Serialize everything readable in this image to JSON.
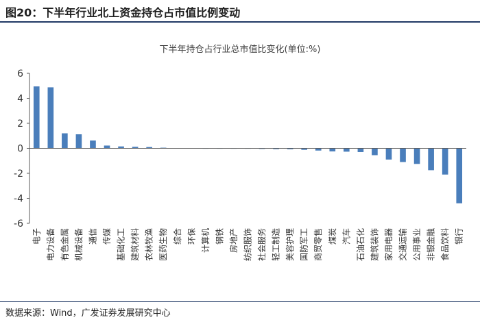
{
  "figure_title": "图20：下半年行业北上资金持仓占市值比例变动",
  "source": "数据来源：Wind，广发证券发展研究中心",
  "colors": {
    "bar": "#4a7ebb",
    "axis": "#595959",
    "text": "#333333",
    "rule": "#1f3864"
  },
  "chart_data": {
    "type": "bar",
    "title": "下半年持仓占行业总市值比变化(单位:%)",
    "xlabel": "",
    "ylabel": "",
    "ylim": [
      -6,
      6
    ],
    "yticks": [
      6,
      4,
      2,
      0,
      -2,
      -4,
      -6
    ],
    "grid": false,
    "legend": "none",
    "categories": [
      "电子",
      "电力设备",
      "有色金属",
      "机械设备",
      "通信",
      "传媒",
      "基础化工",
      "建筑材料",
      "农林牧渔",
      "医药生物",
      "综合",
      "环保",
      "计算机",
      "钢铁",
      "房地产",
      "纺织服饰",
      "社会服务",
      "轻工制造",
      "美容护理",
      "国防军工",
      "商贸零售",
      "煤炭",
      "汽车",
      "石油石化",
      "建筑装饰",
      "家用电器",
      "交通运输",
      "公用事业",
      "非银金融",
      "食品饮料",
      "银行"
    ],
    "values": [
      4.95,
      4.88,
      1.2,
      1.12,
      0.62,
      0.22,
      0.15,
      0.12,
      0.1,
      0.05,
      0.02,
      0.01,
      0.0,
      -0.01,
      -0.02,
      -0.03,
      -0.05,
      -0.07,
      -0.08,
      -0.12,
      -0.18,
      -0.25,
      -0.27,
      -0.3,
      -0.55,
      -0.9,
      -1.1,
      -1.25,
      -1.75,
      -2.1,
      -4.4
    ]
  }
}
